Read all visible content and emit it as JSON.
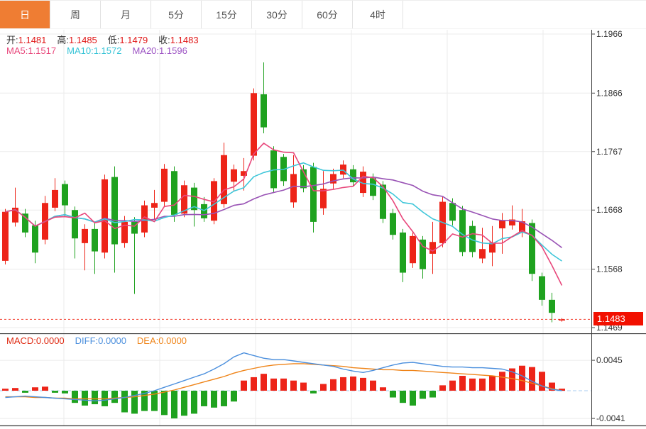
{
  "tabbar": {
    "tabs": [
      {
        "name": "day",
        "label": "日",
        "active": true
      },
      {
        "name": "week",
        "label": "周",
        "active": false
      },
      {
        "name": "month",
        "label": "月",
        "active": false
      },
      {
        "name": "5min",
        "label": "5分",
        "active": false
      },
      {
        "name": "15min",
        "label": "15分",
        "active": false
      },
      {
        "name": "30min",
        "label": "30分",
        "active": false
      },
      {
        "name": "60min",
        "label": "60分",
        "active": false
      },
      {
        "name": "4hour",
        "label": "4时",
        "active": false
      }
    ]
  },
  "main_legend": {
    "ohlc": [
      {
        "label": "开:",
        "value": "1.1481"
      },
      {
        "label": "高:",
        "value": "1.1485"
      },
      {
        "label": "低:",
        "value": "1.1479"
      },
      {
        "label": "收:",
        "value": "1.1483"
      }
    ],
    "ma": [
      {
        "label": "MA5:",
        "value": "1.1517",
        "color": "#e8477b"
      },
      {
        "label": "MA10:",
        "value": "1.1572",
        "color": "#35c3d6"
      },
      {
        "label": "MA20:",
        "value": "1.1596",
        "color": "#9d55c4"
      }
    ]
  },
  "macd_legend": [
    {
      "label": "MACD:",
      "value": "0.0000",
      "color": "#df2a12"
    },
    {
      "label": "DIFF:",
      "value": "0.0000",
      "color": "#4b8fdd"
    },
    {
      "label": "DEA:",
      "value": "0.0000",
      "color": "#ef8418"
    }
  ],
  "price_tag": {
    "value": "1.1483"
  },
  "axes": {
    "main_ticks": [
      "1.1966",
      "1.1866",
      "1.1767",
      "1.1668",
      "1.1568",
      "1.1469"
    ],
    "macd_ticks": [
      "0.0045",
      "-0.0041"
    ]
  },
  "colors": {
    "up": "#ed2418",
    "down": "#1fa21f",
    "ma5": "#e8477b",
    "ma10": "#3ec6d9",
    "ma20": "#9953b5",
    "diff": "#4b8fdd",
    "dea": "#ef8418",
    "ohlc_value": "#e01515",
    "grid": "#ebebeb",
    "axis_line": "#444444",
    "divider": "#3b3b3b",
    "dotted_price_line": "#f24030",
    "zero_dash": "#a8cdf0",
    "tab_active_bg": "#ef7d33",
    "price_tag_bg": "#f21000"
  },
  "chart_data": [
    {
      "type": "candlestick",
      "panel": "main",
      "note": "daily candles, CN convention red=up green=down, values estimated from pixels",
      "y_ticks": [
        1.1966,
        1.1866,
        1.1767,
        1.1668,
        1.1568,
        1.1469
      ],
      "current_price": 1.1483,
      "last_candle": {
        "open": 1.1481,
        "high": 1.1485,
        "low": 1.1479,
        "close": 1.1483
      },
      "ma_periods": [
        5,
        10,
        20
      ],
      "ohlc": [
        [
          1.1582,
          1.167,
          1.1576,
          1.1665
        ],
        [
          1.1647,
          1.1706,
          1.164,
          1.1672
        ],
        [
          1.1662,
          1.167,
          1.1622,
          1.163
        ],
        [
          1.1642,
          1.165,
          1.1578,
          1.1596
        ],
        [
          1.1618,
          1.1692,
          1.161,
          1.168
        ],
        [
          1.1672,
          1.1722,
          1.1666,
          1.1702
        ],
        [
          1.1712,
          1.1718,
          1.1656,
          1.1676
        ],
        [
          1.1668,
          1.1674,
          1.1586,
          1.162
        ],
        [
          1.1612,
          1.1644,
          1.1566,
          1.1636
        ],
        [
          1.1636,
          1.1648,
          1.156,
          1.1598
        ],
        [
          1.1596,
          1.1728,
          1.1586,
          1.172
        ],
        [
          1.1724,
          1.1742,
          1.1562,
          1.161
        ],
        [
          1.1612,
          1.1658,
          1.1604,
          1.1648
        ],
        [
          1.1648,
          1.1656,
          1.1526,
          1.1628
        ],
        [
          1.163,
          1.1684,
          1.1622,
          1.1676
        ],
        [
          1.1672,
          1.1702,
          1.1652,
          1.168
        ],
        [
          1.1682,
          1.1746,
          1.1674,
          1.1738
        ],
        [
          1.1734,
          1.1742,
          1.1648,
          1.166
        ],
        [
          1.1662,
          1.1718,
          1.1656,
          1.171
        ],
        [
          1.1706,
          1.1714,
          1.164,
          1.1668
        ],
        [
          1.1678,
          1.169,
          1.1648,
          1.1654
        ],
        [
          1.165,
          1.1722,
          1.1644,
          1.1717
        ],
        [
          1.1678,
          1.1782,
          1.1672,
          1.1761
        ],
        [
          1.1716,
          1.1745,
          1.17,
          1.1737
        ],
        [
          1.1726,
          1.1756,
          1.1701,
          1.1734
        ],
        [
          1.176,
          1.1874,
          1.1752,
          1.1866
        ],
        [
          1.1864,
          1.1918,
          1.1798,
          1.1808
        ],
        [
          1.1769,
          1.1776,
          1.1697,
          1.1705
        ],
        [
          1.1758,
          1.1763,
          1.1709,
          1.1717
        ],
        [
          1.1681,
          1.1761,
          1.1672,
          1.1729
        ],
        [
          1.1737,
          1.1744,
          1.1698,
          1.1705
        ],
        [
          1.1741,
          1.1748,
          1.163,
          1.1648
        ],
        [
          1.1671,
          1.1734,
          1.166,
          1.1704
        ],
        [
          1.1713,
          1.1738,
          1.1704,
          1.1729
        ],
        [
          1.1728,
          1.1752,
          1.1722,
          1.1745
        ],
        [
          1.1737,
          1.1744,
          1.1708,
          1.1715
        ],
        [
          1.1697,
          1.1742,
          1.169,
          1.1733
        ],
        [
          1.1722,
          1.173,
          1.1685,
          1.1692
        ],
        [
          1.1711,
          1.1717,
          1.1646,
          1.1653
        ],
        [
          1.1663,
          1.167,
          1.1618,
          1.1626
        ],
        [
          1.163,
          1.1636,
          1.1546,
          1.1562
        ],
        [
          1.1578,
          1.163,
          1.157,
          1.1624
        ],
        [
          1.1618,
          1.1624,
          1.1552,
          1.1568
        ],
        [
          1.1594,
          1.1648,
          1.156,
          1.1614
        ],
        [
          1.1612,
          1.169,
          1.1605,
          1.1682
        ],
        [
          1.168,
          1.1688,
          1.1642,
          1.165
        ],
        [
          1.1668,
          1.1675,
          1.159,
          1.1597
        ],
        [
          1.1641,
          1.165,
          1.1588,
          1.1597
        ],
        [
          1.1586,
          1.1638,
          1.1578,
          1.1602
        ],
        [
          1.1596,
          1.1641,
          1.1573,
          1.1613
        ],
        [
          1.1637,
          1.1663,
          1.1594,
          1.1651
        ],
        [
          1.1642,
          1.1676,
          1.1635,
          1.1652
        ],
        [
          1.1631,
          1.167,
          1.1622,
          1.1649
        ],
        [
          1.1646,
          1.1652,
          1.1548,
          1.156
        ],
        [
          1.1556,
          1.1562,
          1.1506,
          1.1516
        ],
        [
          1.1516,
          1.1528,
          1.1478,
          1.1494
        ],
        [
          1.1481,
          1.1485,
          1.1479,
          1.1483
        ]
      ]
    },
    {
      "type": "macd",
      "panel": "sub",
      "y_ticks": [
        0.0045,
        -0.0041
      ],
      "scale": 0.0001,
      "histogram": [
        3,
        4,
        -3,
        5,
        6,
        -3,
        -4,
        -18,
        -22,
        -20,
        -23,
        -18,
        -32,
        -34,
        -30,
        -30,
        -36,
        -41,
        -37,
        -34,
        -23,
        -25,
        -23,
        -16,
        15,
        20,
        25,
        18,
        18,
        15,
        12,
        -4,
        10,
        17,
        20,
        21,
        19,
        15,
        5,
        -10,
        -18,
        -22,
        -12,
        -10,
        8,
        15,
        22,
        18,
        18,
        22,
        28,
        33,
        37,
        35,
        28,
        12,
        3
      ],
      "diff": [
        -10,
        -9,
        -8,
        -9,
        -10,
        -11,
        -12,
        -13,
        -14,
        -15,
        -14,
        -12,
        -10,
        -7,
        -4,
        0,
        5,
        10,
        15,
        20,
        25,
        32,
        40,
        50,
        56,
        52,
        48,
        46,
        46,
        44,
        42,
        40,
        38,
        36,
        32,
        29,
        27,
        30,
        34,
        38,
        41,
        42,
        40,
        38,
        36,
        35,
        35,
        34,
        34,
        33,
        32,
        28,
        22,
        14,
        7,
        2,
        0
      ],
      "dea": [
        -9,
        -9,
        -9,
        -10,
        -10,
        -11,
        -11,
        -12,
        -12,
        -12,
        -12,
        -11,
        -10,
        -9,
        -7,
        -5,
        -2,
        1,
        5,
        9,
        13,
        17,
        21,
        26,
        30,
        33,
        36,
        38,
        39,
        40,
        40,
        39,
        38,
        37,
        36,
        34,
        33,
        32,
        31,
        31,
        30,
        30,
        29,
        28,
        27,
        26,
        25,
        24,
        23,
        22,
        20,
        18,
        15,
        11,
        7,
        3,
        0
      ]
    }
  ]
}
